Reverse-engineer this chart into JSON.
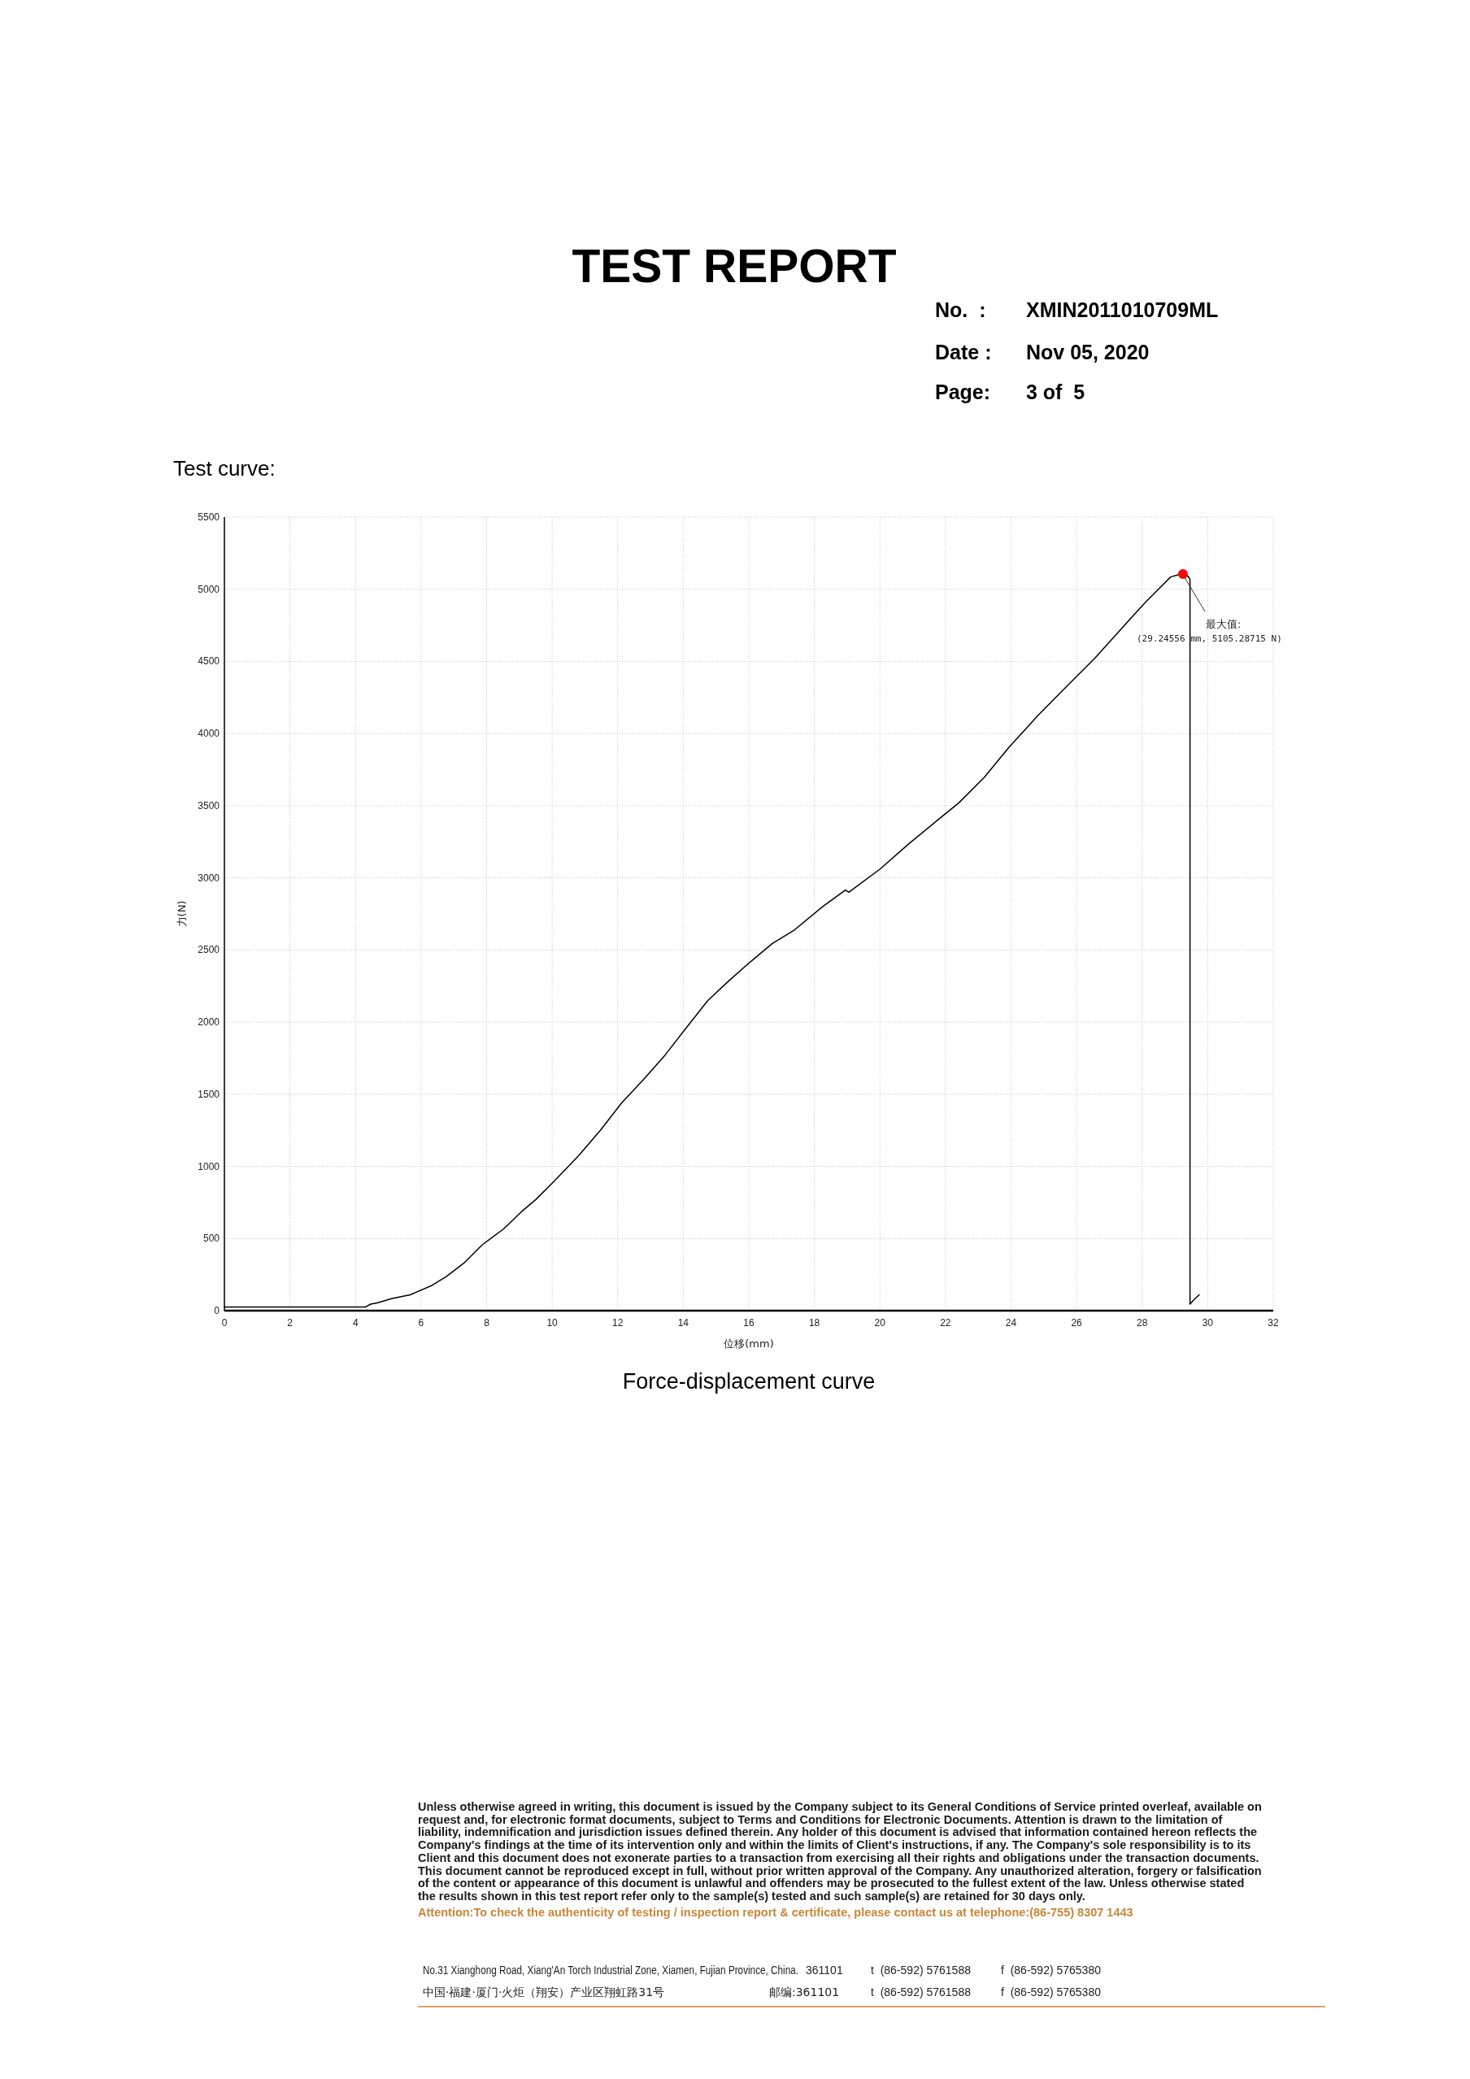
{
  "chart_data": {
    "type": "line",
    "title": "TEST REPORT",
    "xlabel": "位移(mm)",
    "ylabel": "力(N)",
    "xlim": [
      0,
      32
    ],
    "xticks": [
      0,
      2,
      4,
      6,
      8,
      10,
      12,
      14,
      16,
      18,
      20,
      22,
      24,
      26,
      28,
      30,
      32
    ],
    "ylim": [
      0,
      5500
    ],
    "yticks": [
      0,
      500,
      1000,
      1500,
      2000,
      2500,
      3000,
      3500,
      4000,
      4500,
      5000,
      5500
    ],
    "grid": true,
    "series": [
      {
        "color": "#000000",
        "x": [
          0,
          4.3,
          4.46,
          4.68,
          5.12,
          5.67,
          6.33,
          6.76,
          7.31,
          7.86,
          8.51,
          9.06,
          9.5,
          10.05,
          10.81,
          11.47,
          12.12,
          12.78,
          13.44,
          14.09,
          14.75,
          15.41,
          16.06,
          16.72,
          17.4,
          18.25,
          18.95,
          19.05,
          20.0,
          20.88,
          21.76,
          22.41,
          23.18,
          23.94,
          24.82,
          25.69,
          26.57,
          27.34,
          28.1,
          28.54,
          28.87,
          29.09,
          29.24556,
          29.4,
          29.46,
          29.46,
          29.6,
          29.74
        ],
        "values": [
          25,
          25,
          45,
          55,
          85,
          110,
          175,
          235,
          330,
          455,
          565,
          685,
          770,
          895,
          1075,
          1250,
          1440,
          1600,
          1770,
          1960,
          2150,
          2290,
          2420,
          2545,
          2640,
          2800,
          2915,
          2900,
          3060,
          3235,
          3400,
          3520,
          3695,
          3905,
          4125,
          4325,
          4525,
          4720,
          4910,
          5010,
          5085,
          5100,
          5105.28715,
          5090,
          5070,
          45,
          80,
          110
        ]
      },
      {
        "type": "scatter",
        "marker": "circle",
        "color": "#ff0000",
        "x": [
          29.24556
        ],
        "values": [
          5105.28715
        ]
      }
    ],
    "annotations": [
      "No.  :",
      "XMIN2011010709ML",
      "Date :",
      "Nov 05, 2020",
      "Page:",
      "3 of  5",
      "Test curve:",
      "Force-displacement curve",
      "Unless otherwise agreed in writing, this document is issued by the Company subject to its General Conditions of Service printed overleaf, available on request and, for electronic format documents, subject to Terms and Conditions for Electronic Documents. Attention is drawn to the limitation of liability, indemnification and jurisdiction issues defined therein. Any holder of this document is advised that information contained hereon reflects the Company's findings at the time of its intervention only and within the limits of Client's instructions, if any. The Company's sole responsibility is to its Client and this document does not exonerate parties to a transaction from exercising all their rights and obligations under the transaction documents. This document cannot be reproduced except in full, without prior written approval of the Company. Any unauthorized alteration, forgery or falsification of the content or appearance of this document is unlawful and offenders may be prosecuted to the fullest extent of the law. Unless otherwise stated the results shown in this test report refer only to the sample(s) tested and such sample(s) are retained for 30 days only.",
      "Attention:To check the authenticity of testing / inspection report & certificate, please contact us at telephone:(86-755) 8307 1443",
      "No.31 Xianghong Road, Xiang'An Torch Industrial Zone, Xiamen, Fujian Province, China.",
      "361101",
      "t  (86-592) 5761588",
      "f  (86-592) 5765380",
      "中国·福建·厦门·火炬（翔安）产业区翔虹路31号",
      "邮编:361101",
      "t  (86-592) 5761588",
      "f  (86-592) 5765380",
      {
        "text": "最大值:\n(29.24556 mm, 5105.28715 N)",
        "x": 29.24556,
        "y": 5105.28715
      }
    ]
  }
}
